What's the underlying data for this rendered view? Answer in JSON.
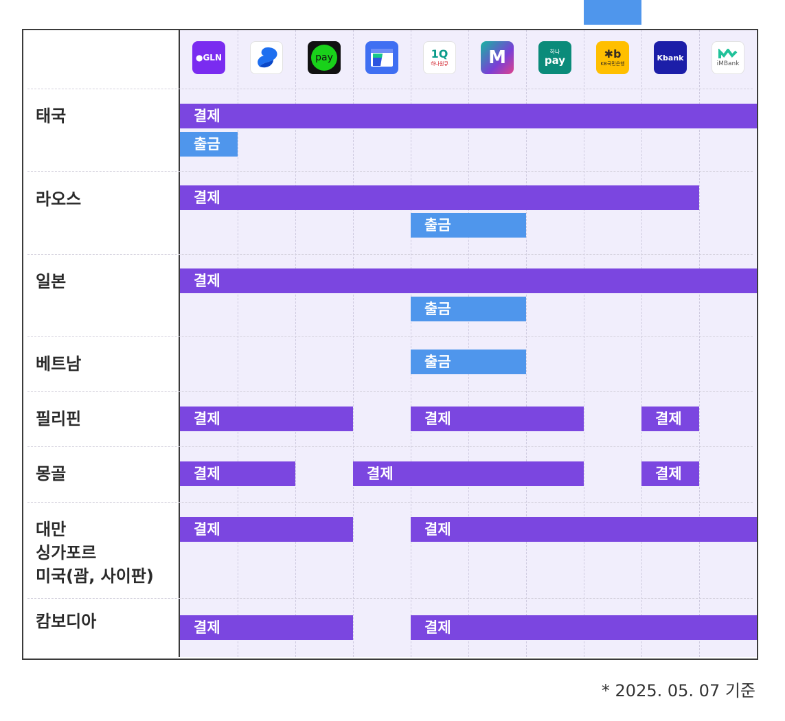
{
  "providers": [
    {
      "id": "gln",
      "icon": "gln-logo-icon",
      "text": "●GLN",
      "bg": "#7a2cf0",
      "fg": "#ffffff"
    },
    {
      "id": "toss",
      "icon": "blue-swirl-logo-icon",
      "text": "",
      "bg": "#ffffff",
      "fg": "#1e6ff0"
    },
    {
      "id": "naverpay",
      "icon": "green-pay-logo-icon",
      "text": "pay",
      "bg": "#111111",
      "fg": "#19d11a"
    },
    {
      "id": "wallet",
      "icon": "blue-wallet-logo-icon",
      "text": "",
      "bg": "#3f6ff2",
      "fg": "#ffffff"
    },
    {
      "id": "hana1q",
      "icon": "hana-1q-logo-icon",
      "text": "1Q",
      "sub": "하나원큐",
      "bg": "#ffffff",
      "fg": "#0a9b8a"
    },
    {
      "id": "m",
      "icon": "m-gradient-logo-icon",
      "text": "M",
      "bg": "#1fa7a0",
      "fg": "#ffffff"
    },
    {
      "id": "hanapay",
      "icon": "hana-pay-logo-icon",
      "text": "pay",
      "sub": "하나",
      "bg": "#0b8b7a",
      "fg": "#ffffff"
    },
    {
      "id": "kb",
      "icon": "kb-bank-logo-icon",
      "text": "✱b",
      "sub": "KB국민은행",
      "bg": "#ffbf00",
      "fg": "#3a2f20"
    },
    {
      "id": "kbank",
      "icon": "kbank-logo-icon",
      "text": "Kbank",
      "bg": "#1c1ea8",
      "fg": "#ffffff"
    },
    {
      "id": "imbank",
      "icon": "imbank-logo-icon",
      "text": "iMBank",
      "bg": "#ffffff",
      "fg": "#21c29a"
    }
  ],
  "rows": [
    {
      "label": "태국",
      "bars": [
        {
          "type": "pay",
          "text": "결제",
          "start": 0,
          "end": 10
        },
        {
          "type": "wd",
          "text": "출금",
          "start": 0,
          "end": 1
        }
      ]
    },
    {
      "label": "라오스",
      "bars": [
        {
          "type": "pay",
          "text": "결제",
          "start": 0,
          "end": 9
        },
        {
          "type": "wd",
          "text": "출금",
          "start": 4,
          "end": 6
        },
        {
          "type": "wd",
          "text": "",
          "start": 7,
          "end": 8
        }
      ]
    },
    {
      "label": "일본",
      "bars": [
        {
          "type": "pay",
          "text": "결제",
          "start": 0,
          "end": 10
        },
        {
          "type": "wd",
          "text": "출금",
          "start": 4,
          "end": 6
        },
        {
          "type": "wd",
          "text": "",
          "start": 7,
          "end": 8
        }
      ]
    },
    {
      "label": "베트남",
      "bars": [
        {
          "type": "wd",
          "text": "출금",
          "start": 4,
          "end": 6
        },
        {
          "type": "wd",
          "text": "",
          "start": 7,
          "end": 8
        }
      ]
    },
    {
      "label": "필리핀",
      "bars": [
        {
          "type": "pay",
          "text": "결제",
          "start": 0,
          "end": 3
        },
        {
          "type": "pay",
          "text": "결제",
          "start": 4,
          "end": 7
        },
        {
          "type": "pay",
          "text": "결제",
          "start": 8,
          "end": 9
        }
      ]
    },
    {
      "label": "몽골",
      "bars": [
        {
          "type": "pay",
          "text": "결제",
          "start": 0,
          "end": 2
        },
        {
          "type": "pay",
          "text": "결제",
          "start": 3,
          "end": 7
        },
        {
          "type": "pay",
          "text": "결제",
          "start": 8,
          "end": 9
        }
      ]
    },
    {
      "label": "대만\n싱가포르\n미국(괌, 사이판)",
      "bars": [
        {
          "type": "pay",
          "text": "결제",
          "start": 0,
          "end": 3
        },
        {
          "type": "pay",
          "text": "결제",
          "start": 4,
          "end": 10
        }
      ]
    },
    {
      "label": "캄보디아",
      "bars": [
        {
          "type": "pay",
          "text": "결제",
          "start": 0,
          "end": 3
        },
        {
          "type": "pay",
          "text": "결제",
          "start": 4,
          "end": 10
        }
      ]
    }
  ],
  "footnote": "* 2025. 05. 07 기준"
}
